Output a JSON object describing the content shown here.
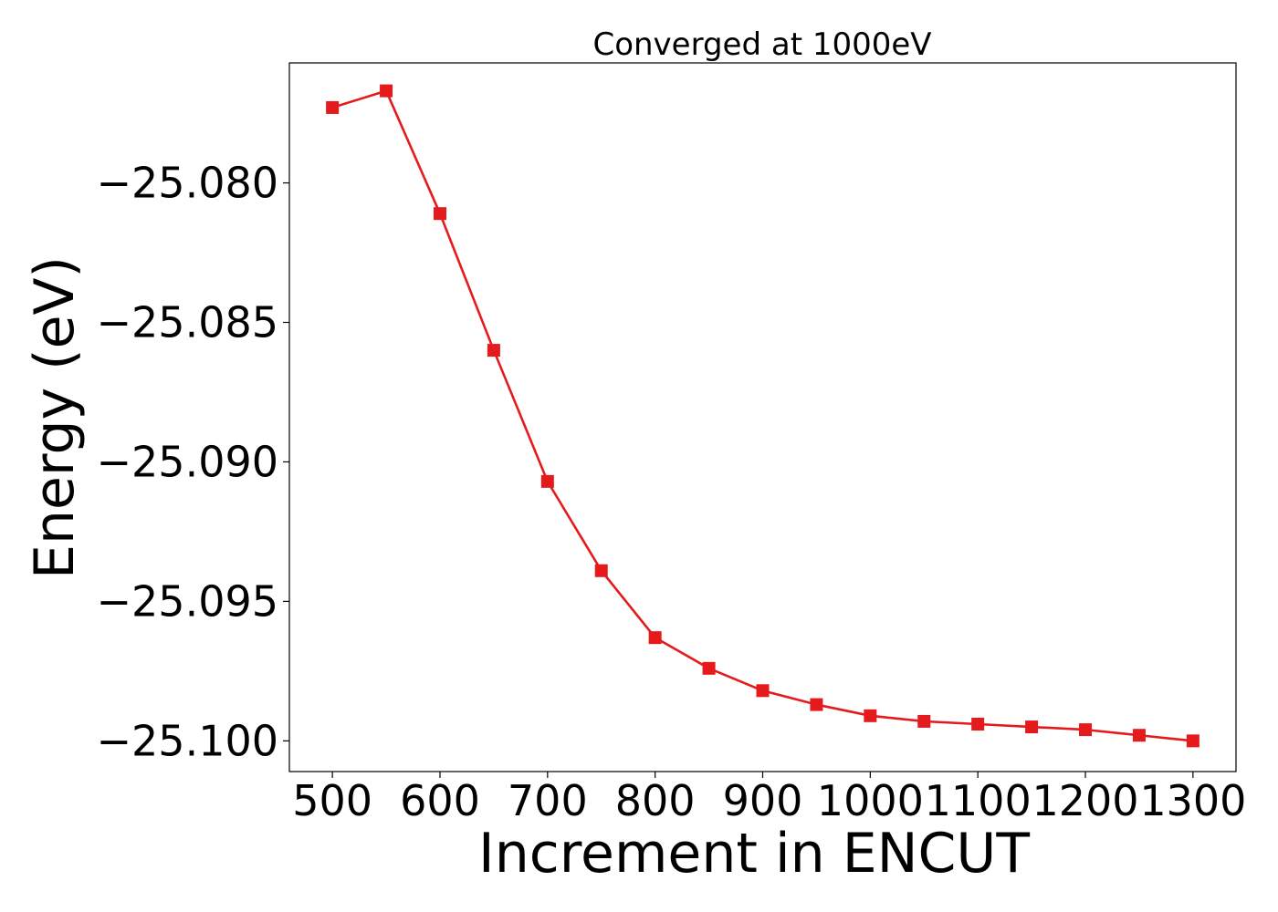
{
  "chart_data": {
    "type": "line",
    "title": "Converged at 1000eV",
    "xlabel": "Increment in ENCUT",
    "ylabel": "Energy (eV)",
    "x": [
      500,
      550,
      600,
      650,
      700,
      750,
      800,
      850,
      900,
      950,
      1000,
      1050,
      1100,
      1150,
      1200,
      1250,
      1300
    ],
    "series": [
      {
        "values": [
          -25.0773,
          -25.0767,
          -25.0811,
          -25.086,
          -25.0907,
          -25.0939,
          -25.0963,
          -25.0974,
          -25.0982,
          -25.0987,
          -25.0991,
          -25.0993,
          -25.0994,
          -25.0995,
          -25.0996,
          -25.0998,
          -25.1
        ],
        "color": "#e41a1c",
        "marker": "square"
      }
    ],
    "xlim": [
      460,
      1340
    ],
    "ylim": [
      -25.1011,
      -25.0757
    ],
    "xticks": [
      500,
      600,
      700,
      800,
      900,
      1000,
      1100,
      1200,
      1300
    ],
    "xtick_labels": [
      "500",
      "600",
      "700",
      "800",
      "900",
      "1000",
      "1100",
      "1200",
      "1300"
    ],
    "yticks": [
      -25.08,
      -25.085,
      -25.09,
      -25.095,
      -25.1
    ],
    "ytick_labels": [
      "−25.080",
      "−25.085",
      "−25.090",
      "−25.095",
      "−25.100"
    ],
    "grid": false,
    "legend": "none"
  }
}
